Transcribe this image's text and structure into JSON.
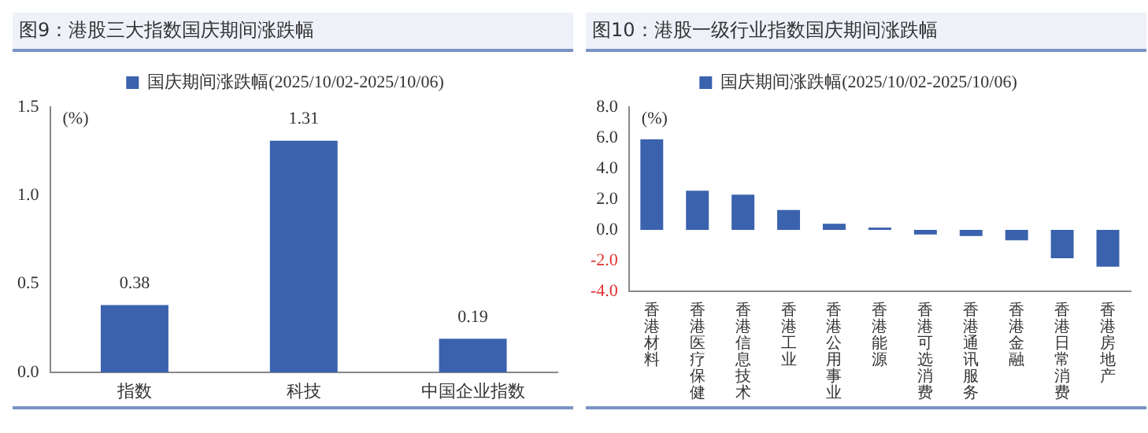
{
  "chart_data": [
    {
      "type": "bar",
      "title": "图9：港股三大指数国庆期间涨跌幅",
      "categories": [
        "指数",
        "科技",
        "中国企业指数"
      ],
      "series": [
        {
          "name": "国庆期间涨跌幅(2025/10/02-2025/10/06)",
          "color": "#3a62ad",
          "values": [
            0.38,
            1.31,
            0.19
          ]
        }
      ],
      "ylim": [
        0,
        1.5
      ],
      "yticks": [
        {
          "value": 0,
          "label": "0.0"
        },
        {
          "value": 0.5,
          "label": "0.5"
        },
        {
          "value": 1,
          "label": "1.0"
        },
        {
          "value": 1.5,
          "label": "1.5"
        }
      ],
      "annotations": [
        "(%)"
      ],
      "data_labels": true,
      "grid": false,
      "legend": "top"
    },
    {
      "type": "bar",
      "title": "图10：港股一级行业指数国庆期间涨跌幅",
      "categories": [
        "香港材料",
        "香港医疗保健",
        "香港信息技术",
        "香港工业",
        "香港公用事业",
        "香港能源",
        "香港可选消费",
        "香港通讯服务",
        "香港金融",
        "香港日常消费",
        "香港房地产"
      ],
      "series": [
        {
          "name": "国庆期间涨跌幅(2025/10/02-2025/10/06)",
          "color": "#3a62ad",
          "values": [
            5.9,
            2.55,
            2.3,
            1.3,
            0.4,
            0.15,
            -0.3,
            -0.4,
            -0.68,
            -1.85,
            -2.4
          ]
        }
      ],
      "ylim": [
        -4,
        8
      ],
      "yticks": [
        {
          "value": -4,
          "label": "-4.0"
        },
        {
          "value": -2,
          "label": "-2.0"
        },
        {
          "value": 0,
          "label": "0.0"
        },
        {
          "value": 2,
          "label": "2.0"
        },
        {
          "value": 4,
          "label": "4.0"
        },
        {
          "value": 6,
          "label": "6.0"
        },
        {
          "value": 8,
          "label": "8.0"
        }
      ],
      "annotations": [
        "(%)"
      ],
      "grid": false,
      "legend": "top"
    }
  ]
}
